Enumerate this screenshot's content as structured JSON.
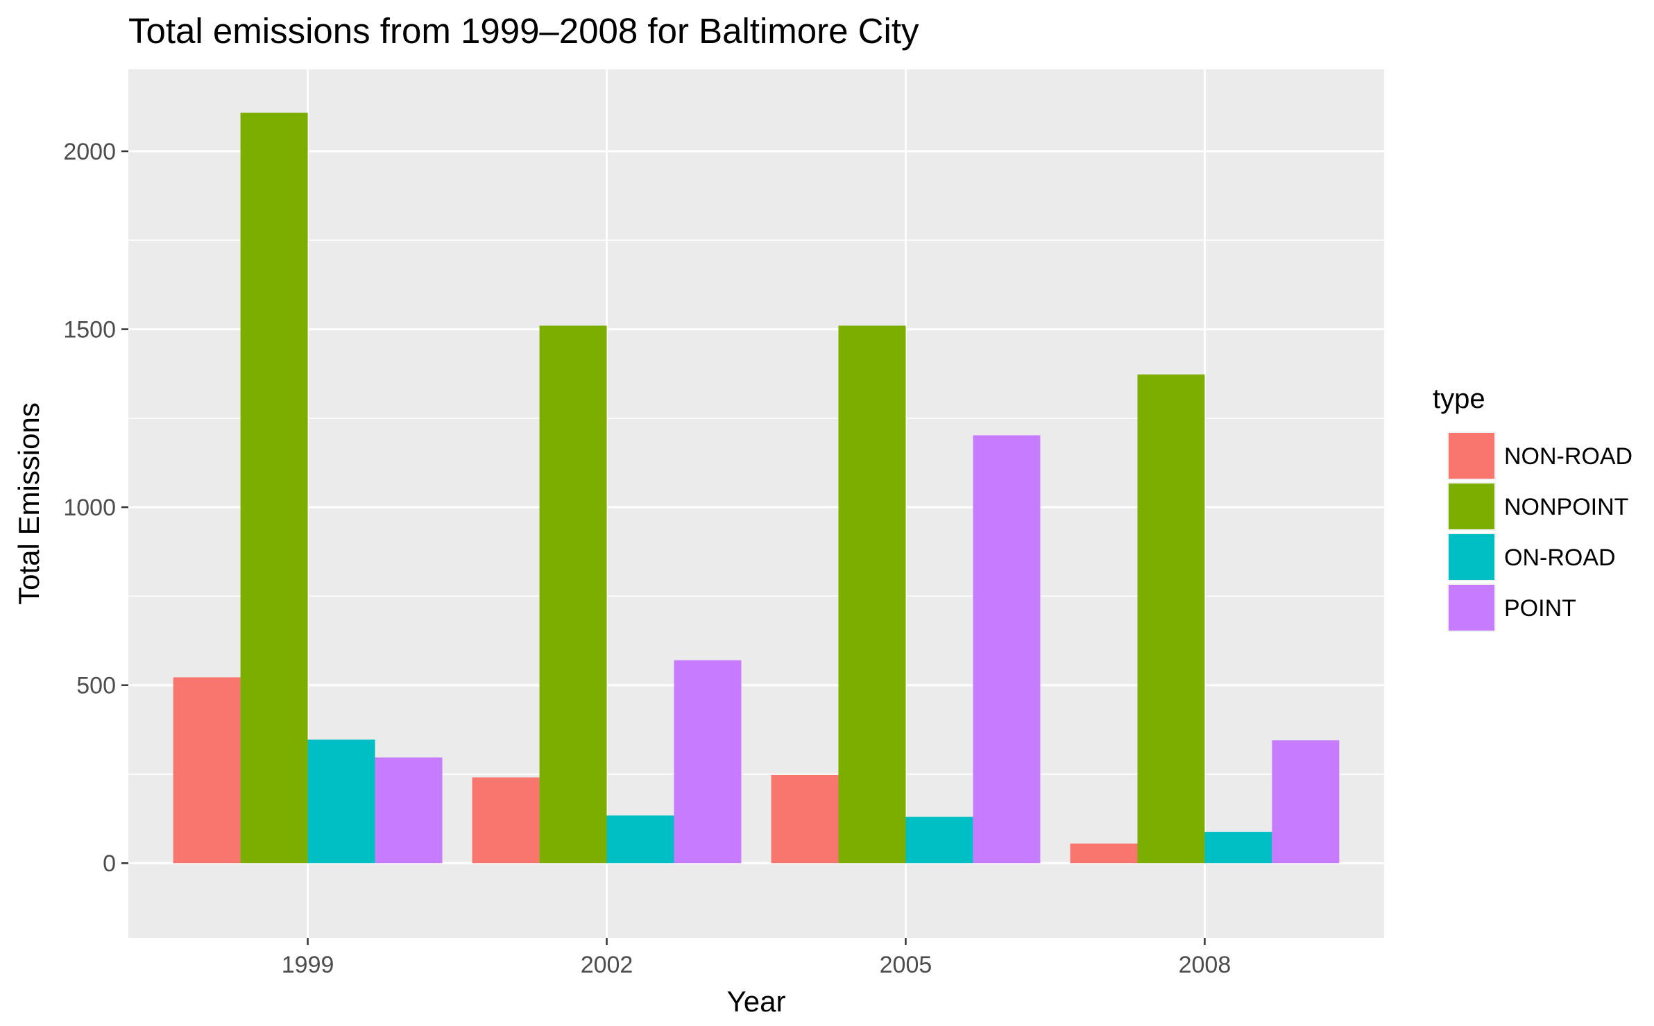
{
  "chart_data": {
    "type": "bar",
    "title": "Total emissions from 1999–2008 for Baltimore City",
    "xlabel": "Year",
    "ylabel": "Total Emissions",
    "categories": [
      "1999",
      "2002",
      "2005",
      "2008"
    ],
    "ylim": [
      -210,
      2230
    ],
    "yticks": [
      0,
      500,
      1000,
      1500,
      2000
    ],
    "grid": true,
    "legend": {
      "title": "type",
      "position": "right"
    },
    "series": [
      {
        "name": "NON-ROAD",
        "color": "#F8766D",
        "values": [
          522,
          241,
          248,
          55
        ]
      },
      {
        "name": "NONPOINT",
        "color": "#7CAE00",
        "values": [
          2108,
          1510,
          1510,
          1373
        ]
      },
      {
        "name": "ON-ROAD",
        "color": "#00BFC4",
        "values": [
          347,
          134,
          130,
          88
        ]
      },
      {
        "name": "POINT",
        "color": "#C77CFF",
        "values": [
          297,
          570,
          1202,
          345
        ]
      }
    ]
  }
}
